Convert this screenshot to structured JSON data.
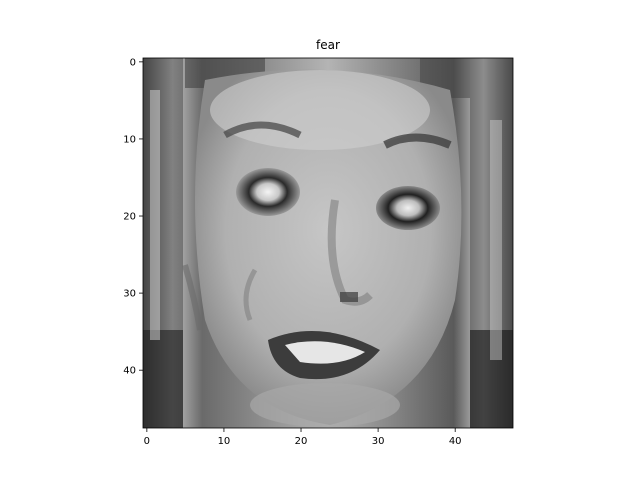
{
  "chart_data": {
    "type": "heatmap",
    "title": "fear",
    "colormap": "gray",
    "grid": false,
    "image_shape": [
      48,
      48
    ],
    "x_ticks": [
      0,
      10,
      20,
      30,
      40
    ],
    "y_ticks": [
      0,
      10,
      20,
      30,
      40
    ],
    "xlim": [
      -0.5,
      47.5
    ],
    "ylim": [
      47.5,
      -0.5
    ],
    "x_tick_labels": [
      "0",
      "10",
      "20",
      "30",
      "40"
    ],
    "y_tick_labels": [
      "0",
      "10",
      "20",
      "30",
      "40"
    ]
  }
}
